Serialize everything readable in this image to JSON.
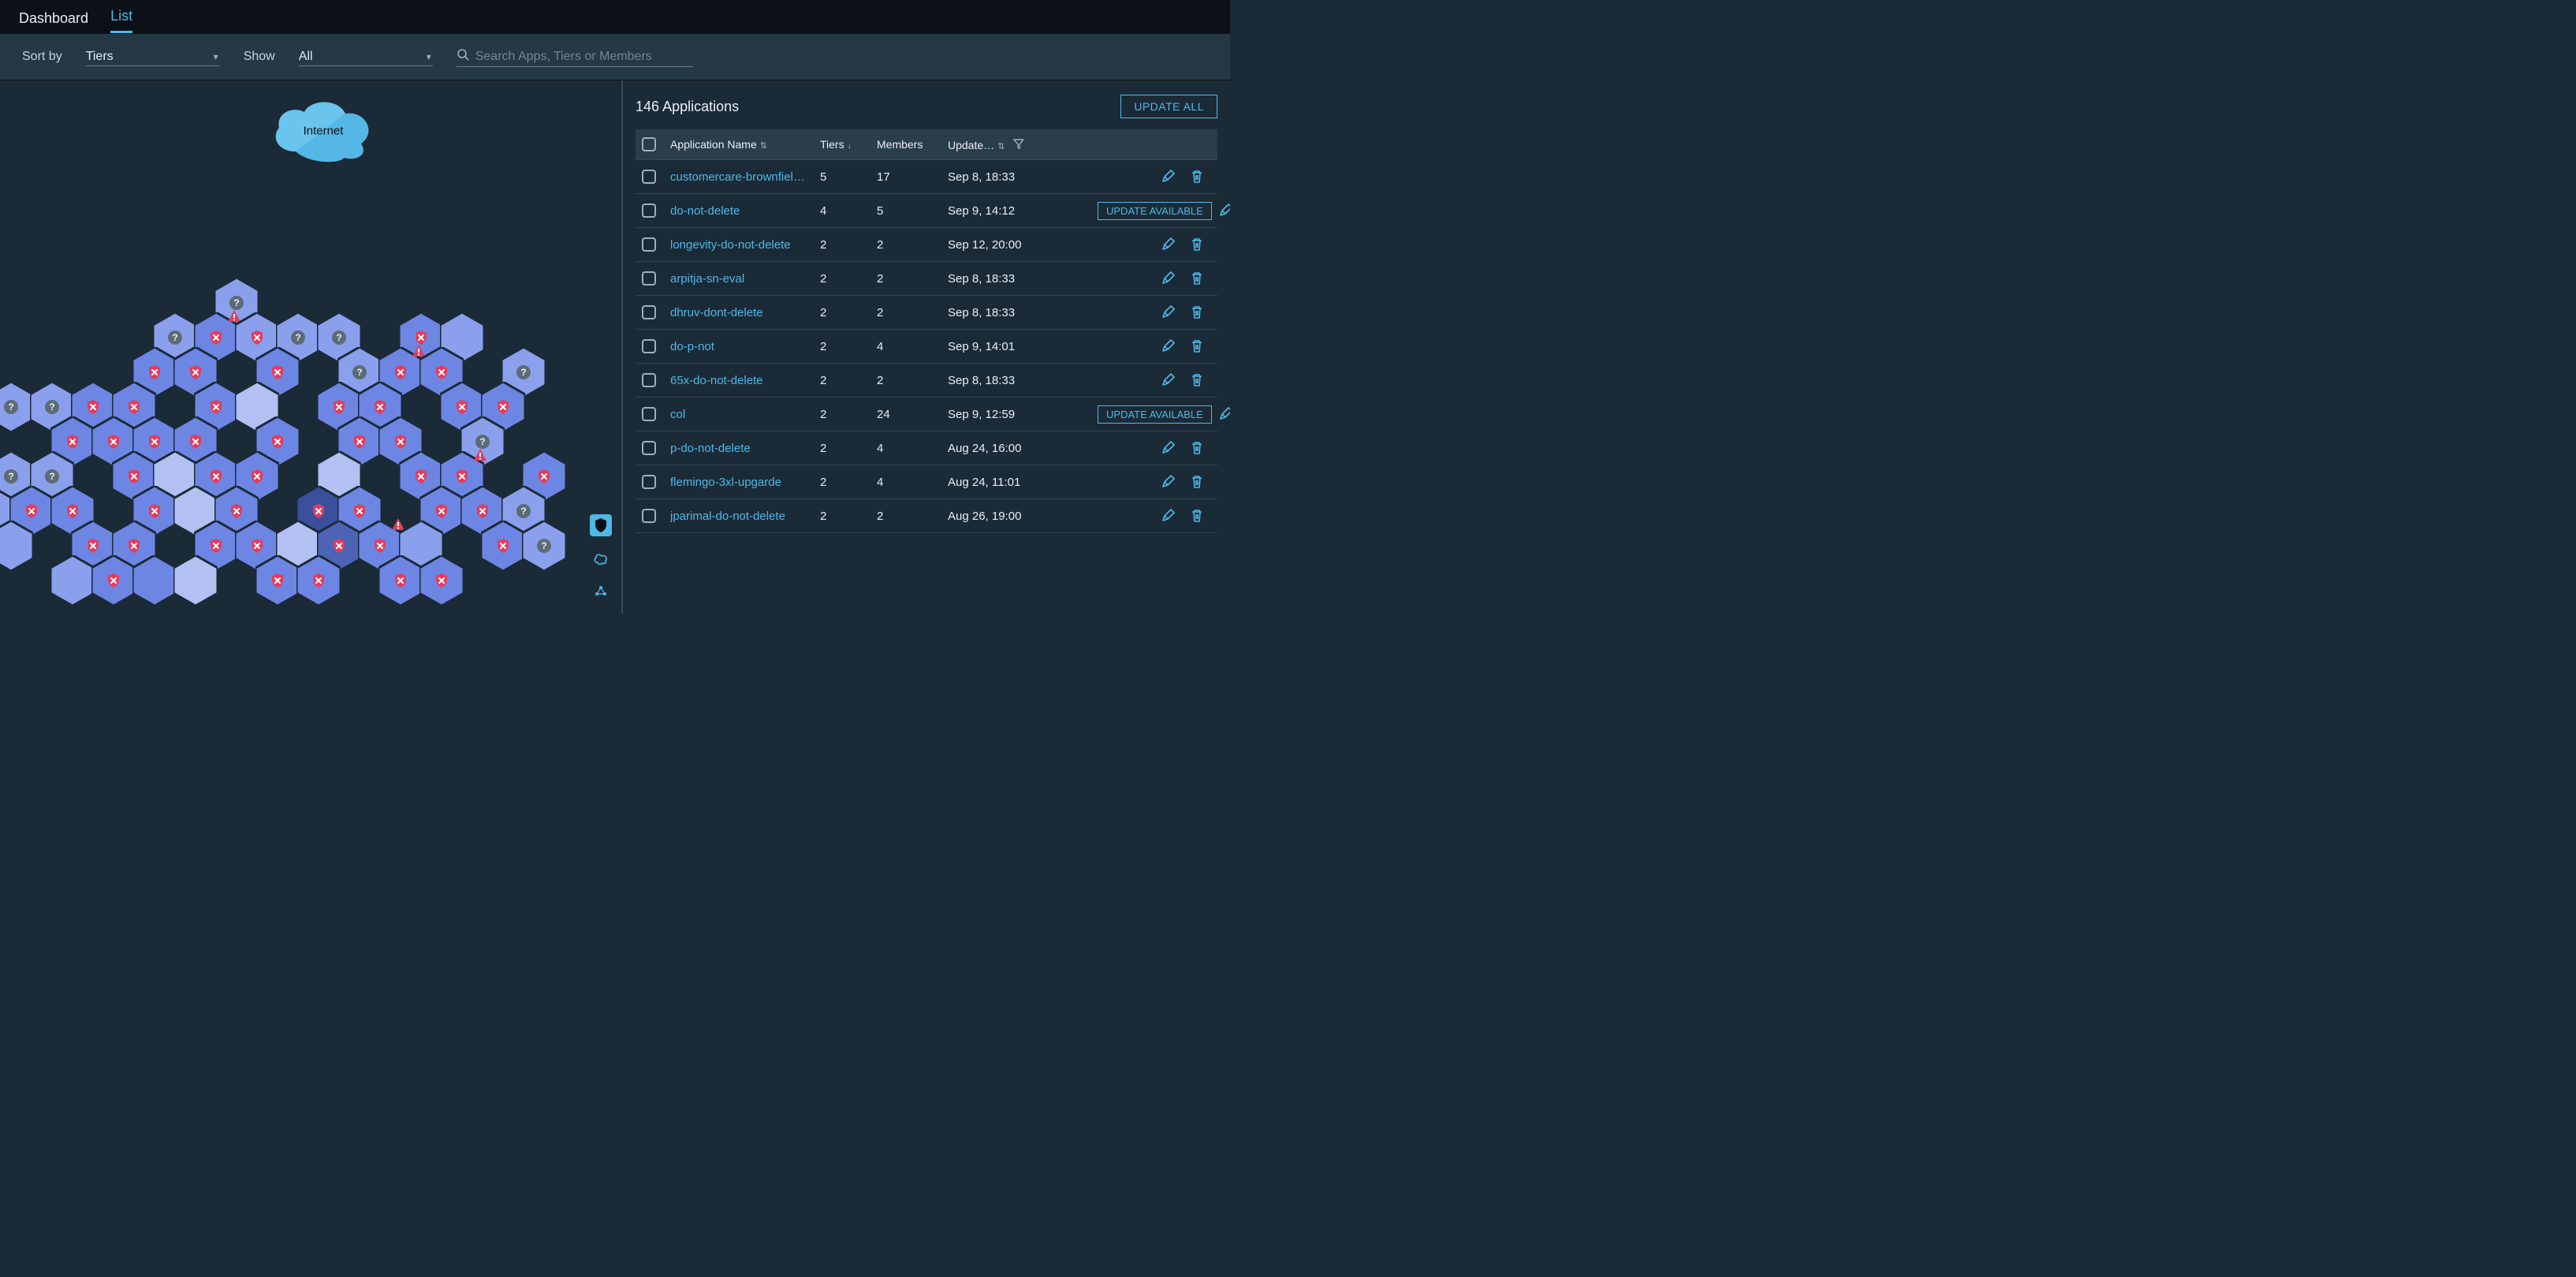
{
  "tabs": {
    "dashboard": "Dashboard",
    "list": "List",
    "active": "list"
  },
  "filters": {
    "sort_by_label": "Sort by",
    "sort_by_value": "Tiers",
    "show_label": "Show",
    "show_value": "All",
    "search_placeholder": "Search Apps, Tiers or Members"
  },
  "cloud_label": "Internet",
  "list_title_count": "146",
  "list_title_suffix": "Applications",
  "update_all_label": "UPDATE ALL",
  "update_available_label": "UPDATE AVAILABLE",
  "columns": {
    "name": "Application Name",
    "tiers": "Tiers",
    "members": "Members",
    "updated": "Update…"
  },
  "rows": [
    {
      "name": "customercare-brownfiel…",
      "tiers": "5",
      "members": "17",
      "updated": "Sep 8, 18:33",
      "update_available": false
    },
    {
      "name": "do-not-delete",
      "tiers": "4",
      "members": "5",
      "updated": "Sep 9, 14:12",
      "update_available": true
    },
    {
      "name": "longevity-do-not-delete",
      "tiers": "2",
      "members": "2",
      "updated": "Sep 12, 20:00",
      "update_available": false
    },
    {
      "name": "arpitja-sn-eval",
      "tiers": "2",
      "members": "2",
      "updated": "Sep 8, 18:33",
      "update_available": false
    },
    {
      "name": "dhruv-dont-delete",
      "tiers": "2",
      "members": "2",
      "updated": "Sep 8, 18:33",
      "update_available": false
    },
    {
      "name": "do-p-not",
      "tiers": "2",
      "members": "4",
      "updated": "Sep 9, 14:01",
      "update_available": false
    },
    {
      "name": "65x-do-not-delete",
      "tiers": "2",
      "members": "2",
      "updated": "Sep 8, 18:33",
      "update_available": false
    },
    {
      "name": "col",
      "tiers": "2",
      "members": "24",
      "updated": "Sep 9, 12:59",
      "update_available": true
    },
    {
      "name": "p-do-not-delete",
      "tiers": "2",
      "members": "4",
      "updated": "Aug 24, 16:00",
      "update_available": false
    },
    {
      "name": "flemingo-3xl-upgarde",
      "tiers": "2",
      "members": "4",
      "updated": "Aug 24, 11:01",
      "update_available": false
    },
    {
      "name": "jparimal-do-not-delete",
      "tiers": "2",
      "members": "2",
      "updated": "Aug 26, 19:00",
      "update_available": false
    }
  ],
  "hex_colors": {
    "light": "#8aa0ed",
    "mid": "#6d86e4",
    "dim": "#5c72c9",
    "pale": "#b2c1f1",
    "dark": "#4d63b5",
    "vdark": "#3a4f9e"
  },
  "status_colors": {
    "shield": "#e43c5c",
    "shield_x": "#ffffff",
    "warn": "#e43c5c",
    "qmark_bg": "#5d6b76"
  },
  "hexes": [
    {
      "r": 0,
      "c": 6,
      "color": "light",
      "badge": "qmark"
    },
    {
      "r": 1,
      "c": 4,
      "color": "light",
      "badge": "qmark"
    },
    {
      "r": 1,
      "c": 5,
      "color": "mid",
      "badge": "shield",
      "corner": "warn"
    },
    {
      "r": 1,
      "c": 6,
      "color": "light",
      "badge": "shield"
    },
    {
      "r": 1,
      "c": 7,
      "color": "light",
      "badge": "qmark"
    },
    {
      "r": 1,
      "c": 8,
      "color": "light",
      "badge": "qmark"
    },
    {
      "r": 1,
      "c": 10,
      "color": "mid",
      "badge": "shield"
    },
    {
      "r": 1,
      "c": 11,
      "color": "light"
    },
    {
      "r": 2,
      "c": 4,
      "color": "mid",
      "badge": "shield"
    },
    {
      "r": 2,
      "c": 5,
      "color": "mid",
      "badge": "shield"
    },
    {
      "r": 2,
      "c": 7,
      "color": "mid",
      "badge": "shield"
    },
    {
      "r": 2,
      "c": 9,
      "color": "light",
      "badge": "qmark"
    },
    {
      "r": 2,
      "c": 10,
      "color": "mid",
      "badge": "shield",
      "corner": "warn"
    },
    {
      "r": 2,
      "c": 11,
      "color": "mid",
      "badge": "shield"
    },
    {
      "r": 2,
      "c": 13,
      "color": "light",
      "badge": "qmark"
    },
    {
      "r": 3,
      "c": 0,
      "color": "light",
      "badge": "qmark"
    },
    {
      "r": 3,
      "c": 1,
      "color": "light",
      "badge": "qmark"
    },
    {
      "r": 3,
      "c": 2,
      "color": "mid",
      "badge": "shield"
    },
    {
      "r": 3,
      "c": 3,
      "color": "mid",
      "badge": "shield"
    },
    {
      "r": 3,
      "c": 5,
      "color": "mid",
      "badge": "shield"
    },
    {
      "r": 3,
      "c": 6,
      "color": "pale"
    },
    {
      "r": 3,
      "c": 8,
      "color": "mid",
      "badge": "shield"
    },
    {
      "r": 3,
      "c": 9,
      "color": "mid",
      "badge": "shield"
    },
    {
      "r": 3,
      "c": 11,
      "color": "mid",
      "badge": "shield"
    },
    {
      "r": 3,
      "c": 12,
      "color": "mid",
      "badge": "shield"
    },
    {
      "r": 4,
      "c": 2,
      "color": "mid",
      "badge": "shield"
    },
    {
      "r": 4,
      "c": 3,
      "color": "mid",
      "badge": "shield"
    },
    {
      "r": 4,
      "c": 4,
      "color": "mid",
      "badge": "shield"
    },
    {
      "r": 4,
      "c": 5,
      "color": "mid",
      "badge": "shield"
    },
    {
      "r": 4,
      "c": 7,
      "color": "mid",
      "badge": "shield"
    },
    {
      "r": 4,
      "c": 9,
      "color": "mid",
      "badge": "shield"
    },
    {
      "r": 4,
      "c": 10,
      "color": "mid",
      "badge": "shield"
    },
    {
      "r": 4,
      "c": 12,
      "color": "light",
      "badge": "qmark"
    },
    {
      "r": 5,
      "c": 0,
      "color": "light",
      "badge": "qmark"
    },
    {
      "r": 5,
      "c": 1,
      "color": "light",
      "badge": "qmark"
    },
    {
      "r": 5,
      "c": 3,
      "color": "mid",
      "badge": "shield"
    },
    {
      "r": 5,
      "c": 4,
      "color": "pale"
    },
    {
      "r": 5,
      "c": 5,
      "color": "mid",
      "badge": "shield"
    },
    {
      "r": 5,
      "c": 6,
      "color": "mid",
      "badge": "shield"
    },
    {
      "r": 5,
      "c": 8,
      "color": "pale"
    },
    {
      "r": 5,
      "c": 10,
      "color": "mid",
      "badge": "shield"
    },
    {
      "r": 5,
      "c": 11,
      "color": "mid",
      "badge": "shield",
      "corner": "warn"
    },
    {
      "r": 5,
      "c": 13,
      "color": "mid",
      "badge": "shield"
    },
    {
      "r": 6,
      "c": 0,
      "color": "light"
    },
    {
      "r": 6,
      "c": 1,
      "color": "mid",
      "badge": "shield"
    },
    {
      "r": 6,
      "c": 2,
      "color": "mid",
      "badge": "shield"
    },
    {
      "r": 6,
      "c": 4,
      "color": "mid",
      "badge": "shield"
    },
    {
      "r": 6,
      "c": 5,
      "color": "pale"
    },
    {
      "r": 6,
      "c": 6,
      "color": "mid",
      "badge": "shield"
    },
    {
      "r": 6,
      "c": 8,
      "color": "vdark",
      "badge": "shield"
    },
    {
      "r": 6,
      "c": 9,
      "color": "mid",
      "badge": "shield"
    },
    {
      "r": 6,
      "c": 11,
      "color": "mid",
      "badge": "shield"
    },
    {
      "r": 6,
      "c": 12,
      "color": "mid",
      "badge": "shield"
    },
    {
      "r": 6,
      "c": 13,
      "color": "light",
      "badge": "qmark"
    },
    {
      "r": 7,
      "c": 0,
      "color": "light"
    },
    {
      "r": 7,
      "c": 2,
      "color": "mid",
      "badge": "shield"
    },
    {
      "r": 7,
      "c": 3,
      "color": "mid",
      "badge": "shield"
    },
    {
      "r": 7,
      "c": 5,
      "color": "mid",
      "badge": "shield"
    },
    {
      "r": 7,
      "c": 6,
      "color": "mid",
      "badge": "shield"
    },
    {
      "r": 7,
      "c": 7,
      "color": "pale"
    },
    {
      "r": 7,
      "c": 8,
      "color": "dark",
      "badge": "shield"
    },
    {
      "r": 7,
      "c": 9,
      "color": "mid",
      "badge": "shield",
      "corner": "warn"
    },
    {
      "r": 7,
      "c": 10,
      "color": "light"
    },
    {
      "r": 7,
      "c": 12,
      "color": "mid",
      "badge": "shield"
    },
    {
      "r": 7,
      "c": 13,
      "color": "light",
      "badge": "qmark"
    },
    {
      "r": 8,
      "c": 2,
      "color": "light"
    },
    {
      "r": 8,
      "c": 3,
      "color": "mid",
      "badge": "shield"
    },
    {
      "r": 8,
      "c": 4,
      "color": "mid"
    },
    {
      "r": 8,
      "c": 5,
      "color": "pale"
    },
    {
      "r": 8,
      "c": 7,
      "color": "mid",
      "badge": "shield"
    },
    {
      "r": 8,
      "c": 8,
      "color": "mid",
      "badge": "shield"
    },
    {
      "r": 8,
      "c": 10,
      "color": "mid",
      "badge": "shield"
    },
    {
      "r": 8,
      "c": 11,
      "color": "mid",
      "badge": "shield"
    }
  ]
}
